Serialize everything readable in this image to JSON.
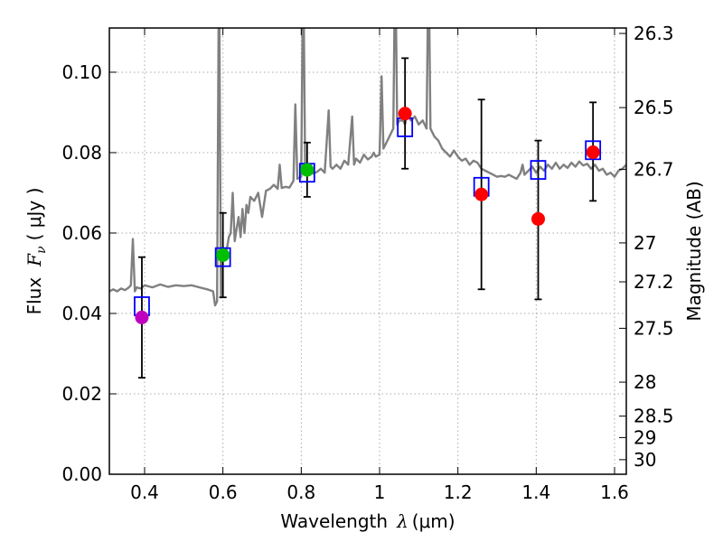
{
  "chart_data": {
    "type": "scatter",
    "xlabel_text": "Wavelength",
    "xlabel_symbol": "λ",
    "xlabel_unit": "(μm)",
    "ylabel_text": "Flux",
    "ylabel_symbol": "F",
    "ylabel_subscript": "ν",
    "ylabel_unit": "( μJy )",
    "y2label": "Magnitude (AB)",
    "xlim": [
      0.31,
      1.63
    ],
    "ylim": [
      0.0,
      0.111
    ],
    "grid": true,
    "x_ticks": [
      {
        "value": 0.4,
        "label": "0.4"
      },
      {
        "value": 0.6,
        "label": "0.6"
      },
      {
        "value": 0.8,
        "label": "0.8"
      },
      {
        "value": 1.0,
        "label": "1"
      },
      {
        "value": 1.2,
        "label": "1.2"
      },
      {
        "value": 1.4,
        "label": "1.4"
      },
      {
        "value": 1.6,
        "label": "1.6"
      }
    ],
    "y_ticks": [
      {
        "value": 0.0,
        "label": "0.00"
      },
      {
        "value": 0.02,
        "label": "0.02"
      },
      {
        "value": 0.04,
        "label": "0.04"
      },
      {
        "value": 0.06,
        "label": "0.06"
      },
      {
        "value": 0.08,
        "label": "0.08"
      },
      {
        "value": 0.1,
        "label": "0.10"
      }
    ],
    "mag_ticks": [
      {
        "mag": 26.3,
        "label": "26.3"
      },
      {
        "mag": 26.5,
        "label": "26.5"
      },
      {
        "mag": 26.7,
        "label": "26.7"
      },
      {
        "mag": 27.0,
        "label": "27"
      },
      {
        "mag": 27.2,
        "label": "27.2"
      },
      {
        "mag": 27.5,
        "label": "27.5"
      },
      {
        "mag": 28.0,
        "label": "28"
      },
      {
        "mag": 28.5,
        "label": "28.5"
      },
      {
        "mag": 29.0,
        "label": "29"
      },
      {
        "mag": 30.0,
        "label": "30"
      }
    ],
    "colors": {
      "spectrum": "#808080",
      "model_box": "#0000ff",
      "errorbar": "#000000",
      "grid": "#aaaaaa"
    },
    "spectrum": [
      [
        0.31,
        0.0455
      ],
      [
        0.32,
        0.046
      ],
      [
        0.33,
        0.0455
      ],
      [
        0.34,
        0.0462
      ],
      [
        0.35,
        0.0458
      ],
      [
        0.36,
        0.0465
      ],
      [
        0.365,
        0.047
      ],
      [
        0.37,
        0.0585
      ],
      [
        0.375,
        0.0455
      ],
      [
        0.38,
        0.0465
      ],
      [
        0.39,
        0.0462
      ],
      [
        0.4,
        0.047
      ],
      [
        0.42,
        0.0465
      ],
      [
        0.44,
        0.0472
      ],
      [
        0.46,
        0.0466
      ],
      [
        0.48,
        0.047
      ],
      [
        0.5,
        0.0468
      ],
      [
        0.52,
        0.047
      ],
      [
        0.54,
        0.0465
      ],
      [
        0.56,
        0.046
      ],
      [
        0.575,
        0.0455
      ],
      [
        0.58,
        0.042
      ],
      [
        0.585,
        0.043
      ],
      [
        0.59,
        0.13
      ],
      [
        0.595,
        0.044
      ],
      [
        0.6,
        0.0545
      ],
      [
        0.605,
        0.055
      ],
      [
        0.61,
        0.056
      ],
      [
        0.615,
        0.059
      ],
      [
        0.62,
        0.06
      ],
      [
        0.625,
        0.07
      ],
      [
        0.63,
        0.058
      ],
      [
        0.635,
        0.061
      ],
      [
        0.64,
        0.064
      ],
      [
        0.645,
        0.059
      ],
      [
        0.65,
        0.066
      ],
      [
        0.655,
        0.06
      ],
      [
        0.66,
        0.067
      ],
      [
        0.665,
        0.065
      ],
      [
        0.67,
        0.069
      ],
      [
        0.68,
        0.068
      ],
      [
        0.69,
        0.07
      ],
      [
        0.7,
        0.064
      ],
      [
        0.71,
        0.0705
      ],
      [
        0.72,
        0.071
      ],
      [
        0.73,
        0.072
      ],
      [
        0.74,
        0.071
      ],
      [
        0.745,
        0.077
      ],
      [
        0.75,
        0.0712
      ],
      [
        0.76,
        0.0715
      ],
      [
        0.77,
        0.0713
      ],
      [
        0.78,
        0.073
      ],
      [
        0.785,
        0.092
      ],
      [
        0.79,
        0.0735
      ],
      [
        0.8,
        0.074
      ],
      [
        0.805,
        0.13
      ],
      [
        0.81,
        0.0745
      ],
      [
        0.82,
        0.0755
      ],
      [
        0.83,
        0.0748
      ],
      [
        0.84,
        0.0752
      ],
      [
        0.85,
        0.076
      ],
      [
        0.86,
        0.075
      ],
      [
        0.87,
        0.0905
      ],
      [
        0.875,
        0.0765
      ],
      [
        0.88,
        0.076
      ],
      [
        0.89,
        0.077
      ],
      [
        0.9,
        0.076
      ],
      [
        0.91,
        0.078
      ],
      [
        0.92,
        0.077
      ],
      [
        0.93,
        0.089
      ],
      [
        0.935,
        0.077
      ],
      [
        0.94,
        0.0785
      ],
      [
        0.95,
        0.0775
      ],
      [
        0.96,
        0.0795
      ],
      [
        0.97,
        0.0783
      ],
      [
        0.98,
        0.079
      ],
      [
        0.985,
        0.08
      ],
      [
        0.99,
        0.079
      ],
      [
        1.0,
        0.0795
      ],
      [
        1.005,
        0.099
      ],
      [
        1.01,
        0.081
      ],
      [
        1.02,
        0.083
      ],
      [
        1.03,
        0.085
      ],
      [
        1.035,
        0.086
      ],
      [
        1.04,
        0.13
      ],
      [
        1.045,
        0.087
      ],
      [
        1.05,
        0.088
      ],
      [
        1.06,
        0.088
      ],
      [
        1.065,
        0.087
      ],
      [
        1.07,
        0.0895
      ],
      [
        1.08,
        0.088
      ],
      [
        1.09,
        0.089
      ],
      [
        1.1,
        0.087
      ],
      [
        1.11,
        0.088
      ],
      [
        1.12,
        0.086
      ],
      [
        1.125,
        0.13
      ],
      [
        1.13,
        0.086
      ],
      [
        1.14,
        0.084
      ],
      [
        1.15,
        0.083
      ],
      [
        1.16,
        0.081
      ],
      [
        1.17,
        0.08
      ],
      [
        1.18,
        0.079
      ],
      [
        1.19,
        0.0805
      ],
      [
        1.2,
        0.079
      ],
      [
        1.21,
        0.078
      ],
      [
        1.22,
        0.0785
      ],
      [
        1.23,
        0.077
      ],
      [
        1.24,
        0.078
      ],
      [
        1.25,
        0.0775
      ],
      [
        1.26,
        0.076
      ],
      [
        1.27,
        0.0755
      ],
      [
        1.28,
        0.075
      ],
      [
        1.29,
        0.0745
      ],
      [
        1.3,
        0.074
      ],
      [
        1.31,
        0.0742
      ],
      [
        1.32,
        0.074
      ],
      [
        1.33,
        0.0745
      ],
      [
        1.34,
        0.074
      ],
      [
        1.35,
        0.0735
      ],
      [
        1.36,
        0.075
      ],
      [
        1.365,
        0.077
      ],
      [
        1.37,
        0.0745
      ],
      [
        1.38,
        0.0755
      ],
      [
        1.39,
        0.0765
      ],
      [
        1.4,
        0.075
      ],
      [
        1.41,
        0.0765
      ],
      [
        1.42,
        0.0755
      ],
      [
        1.43,
        0.077
      ],
      [
        1.44,
        0.076
      ],
      [
        1.45,
        0.0775
      ],
      [
        1.46,
        0.076
      ],
      [
        1.47,
        0.077
      ],
      [
        1.48,
        0.0762
      ],
      [
        1.49,
        0.0775
      ],
      [
        1.5,
        0.0765
      ],
      [
        1.51,
        0.0778
      ],
      [
        1.52,
        0.0768
      ],
      [
        1.53,
        0.0772
      ],
      [
        1.54,
        0.076
      ],
      [
        1.55,
        0.077
      ],
      [
        1.56,
        0.0755
      ],
      [
        1.57,
        0.076
      ],
      [
        1.58,
        0.0745
      ],
      [
        1.59,
        0.075
      ],
      [
        1.6,
        0.074
      ],
      [
        1.61,
        0.0755
      ],
      [
        1.62,
        0.076
      ],
      [
        1.63,
        0.077
      ]
    ],
    "photometry": [
      {
        "name": "point-0.39",
        "x": 0.393,
        "y": 0.039,
        "yerr_low": 0.024,
        "yerr_high": 0.054,
        "color": "#bf00bf",
        "model": 0.0418
      },
      {
        "name": "point-0.60",
        "x": 0.6,
        "y": 0.0545,
        "yerr_low": 0.044,
        "yerr_high": 0.065,
        "color": "#00bf00",
        "model": 0.054
      },
      {
        "name": "point-0.81",
        "x": 0.815,
        "y": 0.0757,
        "yerr_low": 0.069,
        "yerr_high": 0.0825,
        "color": "#00bf00",
        "model": 0.075
      },
      {
        "name": "point-1.06",
        "x": 1.065,
        "y": 0.0897,
        "yerr_low": 0.076,
        "yerr_high": 0.1035,
        "color": "#ff0000",
        "model": 0.0863
      },
      {
        "name": "point-1.26",
        "x": 1.26,
        "y": 0.0696,
        "yerr_low": 0.046,
        "yerr_high": 0.0932,
        "color": "#ff0000",
        "model": 0.0715
      },
      {
        "name": "point-1.40",
        "x": 1.405,
        "y": 0.0635,
        "yerr_low": 0.0435,
        "yerr_high": 0.083,
        "color": "#ff0000",
        "model": 0.0757
      },
      {
        "name": "point-1.54",
        "x": 1.545,
        "y": 0.0801,
        "yerr_low": 0.068,
        "yerr_high": 0.0925,
        "color": "#ff0000",
        "model": 0.0806
      }
    ]
  }
}
